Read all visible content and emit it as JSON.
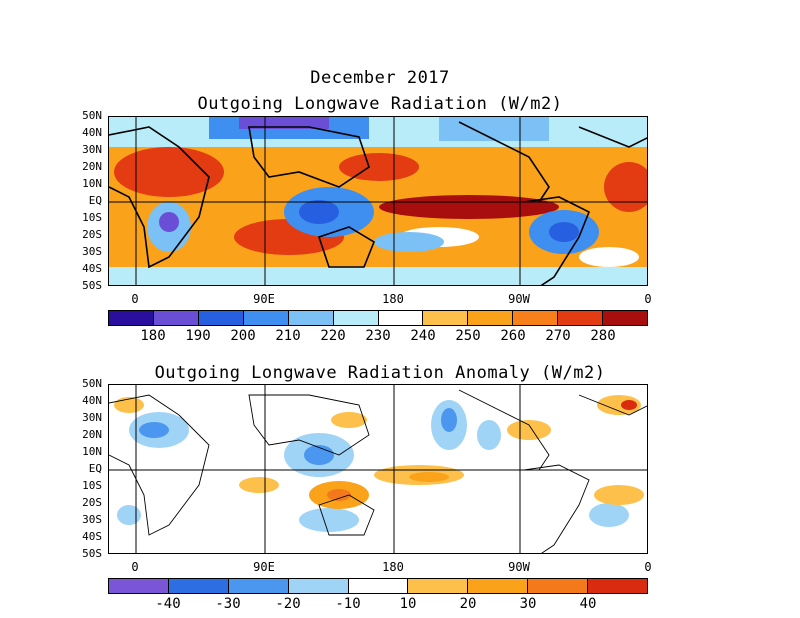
{
  "header": {
    "date_title": "December 2017",
    "top_title": "Outgoing Longwave Radiation (W/m2)",
    "bottom_title": "Outgoing Longwave Radiation Anomaly (W/m2)"
  },
  "axes": {
    "lat_labels": [
      "50N",
      "40N",
      "30N",
      "20N",
      "10N",
      "EQ",
      "10S",
      "20S",
      "30S",
      "40S",
      "50S"
    ],
    "lon_labels": [
      "0",
      "90E",
      "180",
      "90W",
      "0"
    ]
  },
  "colorbar_top": {
    "labels": [
      "180",
      "190",
      "200",
      "210",
      "220",
      "230",
      "240",
      "250",
      "260",
      "270",
      "280"
    ],
    "colors": [
      "#2a0f9e",
      "#6a4fd6",
      "#2660e0",
      "#3f8ff0",
      "#7cc1f5",
      "#b8ecf8",
      "#ffffff",
      "#fdc04b",
      "#f9a21a",
      "#f7801a",
      "#e33b12",
      "#a90e0e"
    ]
  },
  "colorbar_bottom": {
    "labels": [
      "-40",
      "-30",
      "-20",
      "-10",
      "10",
      "20",
      "30",
      "40"
    ],
    "colors": [
      "#7a56d6",
      "#2d6fe3",
      "#4b97ef",
      "#9fd4f7",
      "#ffffff",
      "#fdc04b",
      "#f9a21a",
      "#f4791a",
      "#d92b0f"
    ]
  }
}
